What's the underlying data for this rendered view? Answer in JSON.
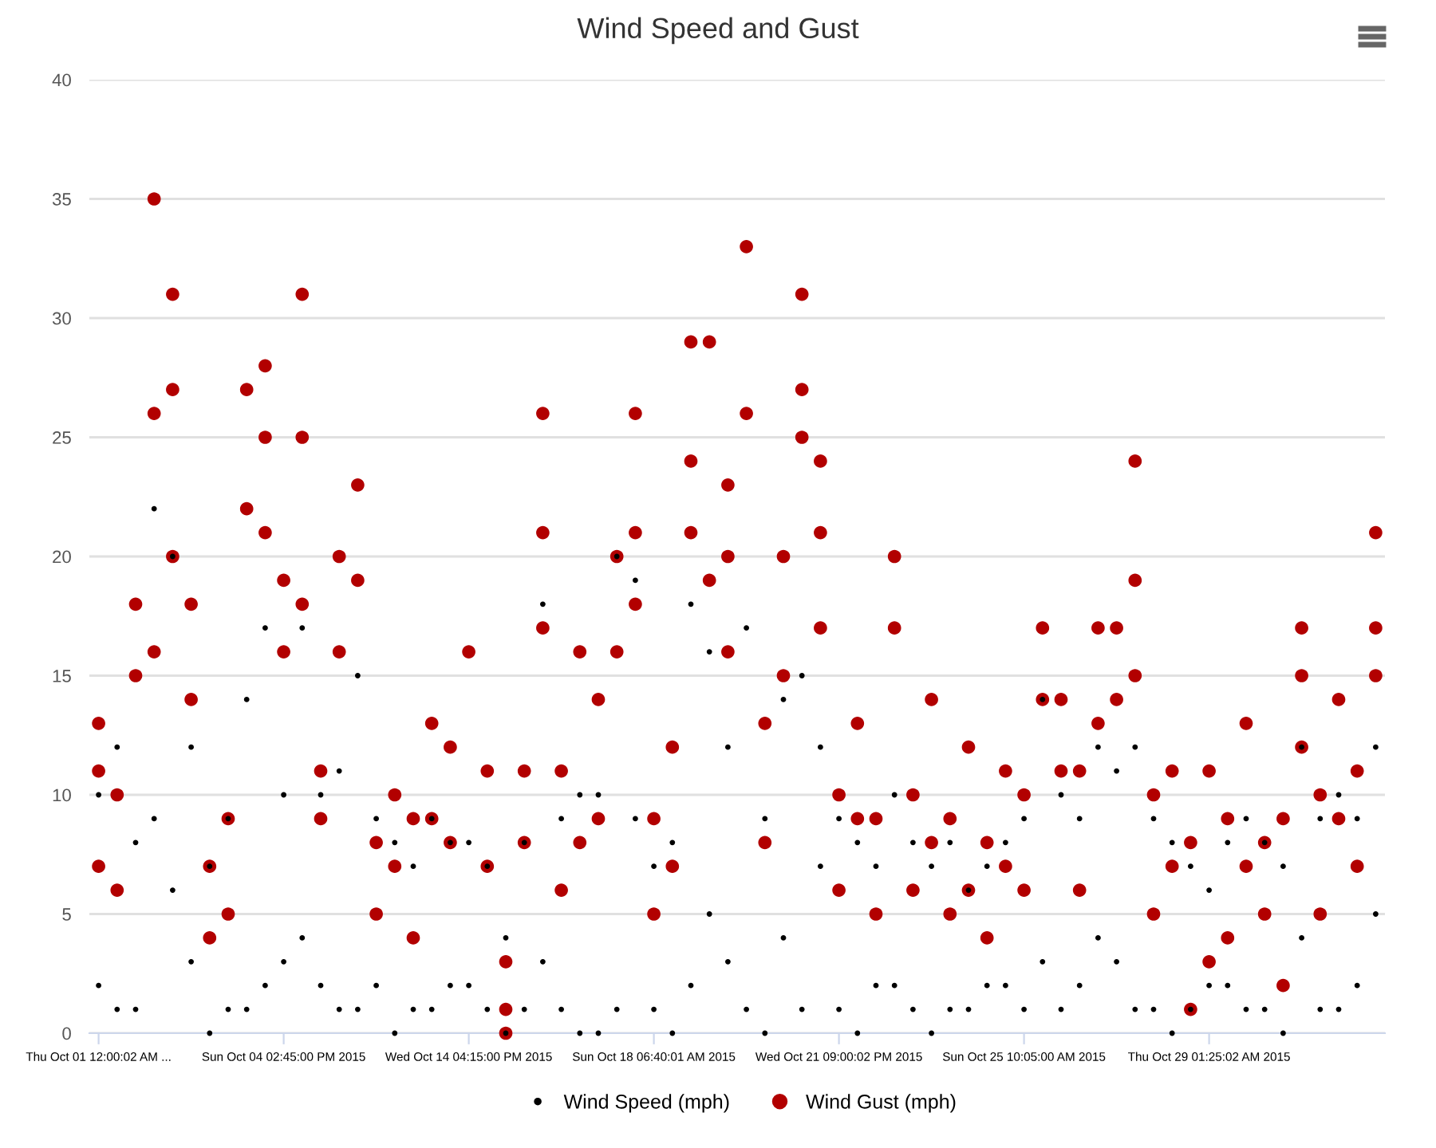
{
  "chart_data": {
    "type": "scatter",
    "title": "Wind Speed and Gust",
    "categories": [
      "Thu Oct 01 12:00:02 AM ...",
      null,
      null,
      null,
      null,
      null,
      null,
      null,
      null,
      null,
      "Sun Oct 04 02:45:00 PM 2015",
      null,
      null,
      null,
      null,
      null,
      null,
      null,
      null,
      null,
      "Wed Oct 14 04:15:00 PM 2015",
      null,
      null,
      null,
      null,
      null,
      null,
      null,
      null,
      null,
      "Sun Oct 18 06:40:01 AM 2015",
      null,
      null,
      null,
      null,
      null,
      null,
      null,
      null,
      null,
      "Wed Oct 21 09:00:02 PM 2015",
      null,
      null,
      null,
      null,
      null,
      null,
      null,
      null,
      null,
      "Sun Oct 25 10:05:00 AM 2015",
      null,
      null,
      null,
      null,
      null,
      null,
      null,
      null,
      null,
      "Thu Oct 29 01:25:02 AM 2015",
      null,
      null,
      null,
      null,
      null,
      null,
      null,
      null,
      null
    ],
    "ylim": [
      0,
      40
    ],
    "yticks": [
      0,
      5,
      10,
      15,
      20,
      25,
      30,
      35,
      40
    ],
    "grid": "y",
    "legend": "bottom",
    "marker": "circle",
    "series": [
      {
        "name": "Wind Speed (mph)",
        "color": "#000000",
        "values": [
          10,
          12,
          8,
          22,
          20,
          12,
          7,
          9,
          14,
          17,
          10,
          17,
          10,
          11,
          15,
          9,
          8,
          7,
          9,
          8,
          8,
          7,
          4,
          8,
          18,
          9,
          10,
          10,
          20,
          19,
          7,
          8,
          18,
          16,
          12,
          17,
          9,
          14,
          15,
          12,
          9,
          8,
          7,
          10,
          8,
          7,
          8,
          6,
          7,
          8,
          9,
          14,
          10,
          9,
          12,
          11,
          12,
          9,
          8,
          7,
          6,
          8,
          9,
          8,
          7,
          12,
          9,
          10,
          9,
          12
        ]
      },
      {
        "color": "#000000",
        "values": [
          2,
          1,
          1,
          9,
          6,
          3,
          0,
          1,
          1,
          2,
          3,
          4,
          2,
          1,
          1,
          2,
          0,
          1,
          1,
          2,
          2,
          1,
          0,
          1,
          3,
          1,
          0,
          0,
          1,
          9,
          1,
          0,
          2,
          5,
          3,
          1,
          0,
          4,
          1,
          7,
          1,
          0,
          2,
          2,
          1,
          0,
          1,
          1,
          2,
          2,
          1,
          3,
          1,
          2,
          4,
          3,
          1,
          1,
          0,
          1,
          2,
          2,
          1,
          1,
          0,
          4,
          1,
          1,
          2,
          5
        ]
      },
      {
        "name": "Wind Gust (mph)",
        "color": "#b20000",
        "values": [
          13,
          10,
          18,
          35,
          31,
          18,
          7,
          9,
          27,
          28,
          19,
          31,
          11,
          20,
          23,
          8,
          10,
          9,
          13,
          12,
          16,
          11,
          3,
          11,
          26,
          11,
          16,
          14,
          20,
          26,
          9,
          12,
          29,
          29,
          23,
          33,
          13,
          20,
          31,
          24,
          10,
          13,
          9,
          20,
          10,
          14,
          9,
          12,
          8,
          11,
          10,
          17,
          14,
          11,
          17,
          17,
          24,
          10,
          11,
          8,
          11,
          9,
          13,
          8,
          9,
          17,
          10,
          14,
          11,
          21
        ]
      },
      {
        "color": "#b20000",
        "values": [
          11,
          6,
          15,
          26,
          27,
          14,
          4,
          5,
          22,
          25,
          16,
          25,
          9,
          16,
          19,
          5,
          7,
          4,
          9,
          8,
          null,
          7,
          1,
          8,
          21,
          6,
          8,
          9,
          16,
          21,
          5,
          7,
          24,
          19,
          20,
          26,
          8,
          15,
          27,
          21,
          6,
          9,
          5,
          17,
          6,
          8,
          5,
          6,
          4,
          7,
          6,
          14,
          11,
          6,
          13,
          14,
          19,
          5,
          7,
          1,
          3,
          4,
          7,
          5,
          2,
          15,
          5,
          9,
          7,
          17
        ]
      },
      {
        "color": "#b20000",
        "values": [
          7,
          null,
          null,
          16,
          20,
          null,
          null,
          null,
          null,
          21,
          null,
          18,
          null,
          null,
          null,
          null,
          null,
          null,
          null,
          null,
          null,
          null,
          0,
          null,
          17,
          null,
          null,
          null,
          null,
          18,
          null,
          null,
          21,
          null,
          16,
          null,
          null,
          null,
          25,
          17,
          null,
          null,
          null,
          null,
          null,
          null,
          null,
          null,
          null,
          null,
          null,
          null,
          null,
          null,
          null,
          null,
          15,
          null,
          null,
          null,
          null,
          null,
          null,
          null,
          null,
          12,
          null,
          null,
          null,
          15
        ]
      }
    ]
  }
}
